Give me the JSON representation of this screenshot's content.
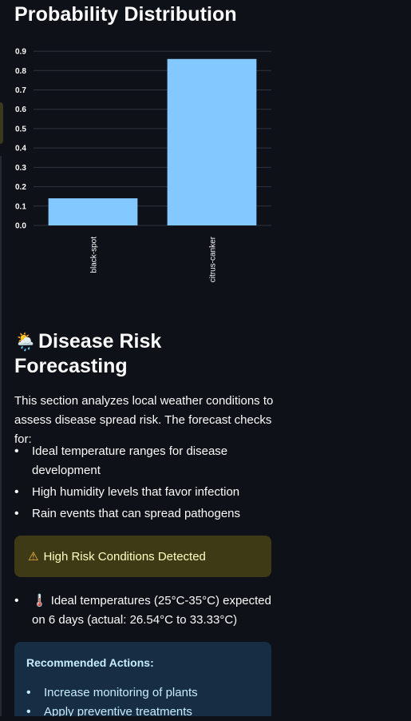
{
  "probability": {
    "title": "Probability Distribution"
  },
  "chart_data": {
    "type": "bar",
    "title": "Probability Distribution",
    "categories": [
      "black-spot",
      "citrus-canker"
    ],
    "values": [
      0.14,
      0.86
    ],
    "ylim": [
      0,
      0.9
    ],
    "yticks": [
      "0.0",
      "0.1",
      "0.2",
      "0.3",
      "0.4",
      "0.5",
      "0.6",
      "0.7",
      "0.8",
      "0.9"
    ],
    "bar_color": "#83c9ff",
    "grid": true,
    "xlabel": "",
    "ylabel": ""
  },
  "risk": {
    "emoji": "🌦️",
    "title": "Disease Risk Forecasting",
    "intro": "This section analyzes local weather conditions to assess disease spread risk. The forecast checks for:",
    "checks": [
      "Ideal temperature ranges for disease development",
      "High humidity levels that favor infection",
      "Rain events that can spread pathogens"
    ],
    "warning_icon": "⚠",
    "warning": "High Risk Conditions Detected",
    "detail_icon": "🌡️",
    "detail": "Ideal temperatures (25°C-35°C) expected on 6 days (actual: 26.54°C to 33.33°C)"
  },
  "actions": {
    "title": "Recommended Actions:",
    "items": [
      "Increase monitoring of plants",
      "Apply preventive treatments"
    ]
  },
  "colors": {
    "warning_bg": "#3e3a16",
    "info_bg": "#172d43",
    "accent": "#83c9ff"
  }
}
